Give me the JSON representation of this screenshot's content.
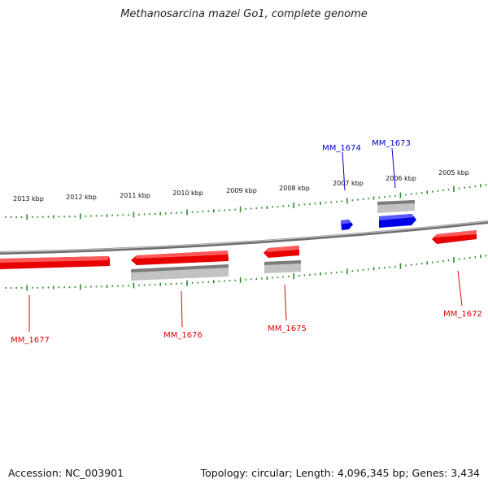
{
  "title": "Methanosarcina mazei Go1, complete genome",
  "footer": {
    "accession": "Accession: NC_003901",
    "summary": "Topology: circular; Length: 4,096,345 bp; Genes: 3,434"
  },
  "colors": {
    "forward_gene": "#0000ff",
    "reverse_gene": "#ff0000",
    "tick": "#2e8b2e",
    "backbone": "#808080",
    "cds_shadow": "#b0b0b0"
  },
  "scale_labels": [
    "2013 kbp",
    "2012 kbp",
    "2011 kbp",
    "2010 kbp",
    "2009 kbp",
    "2008 kbp",
    "2007 kbp",
    "2006 kbp",
    "2005 kbp"
  ],
  "genes": [
    {
      "name": "MM_1677",
      "strand": "reverse"
    },
    {
      "name": "MM_1676",
      "strand": "reverse"
    },
    {
      "name": "MM_1675",
      "strand": "reverse"
    },
    {
      "name": "MM_1674",
      "strand": "forward"
    },
    {
      "name": "MM_1673",
      "strand": "forward"
    },
    {
      "name": "MM_1672",
      "strand": "reverse"
    }
  ]
}
